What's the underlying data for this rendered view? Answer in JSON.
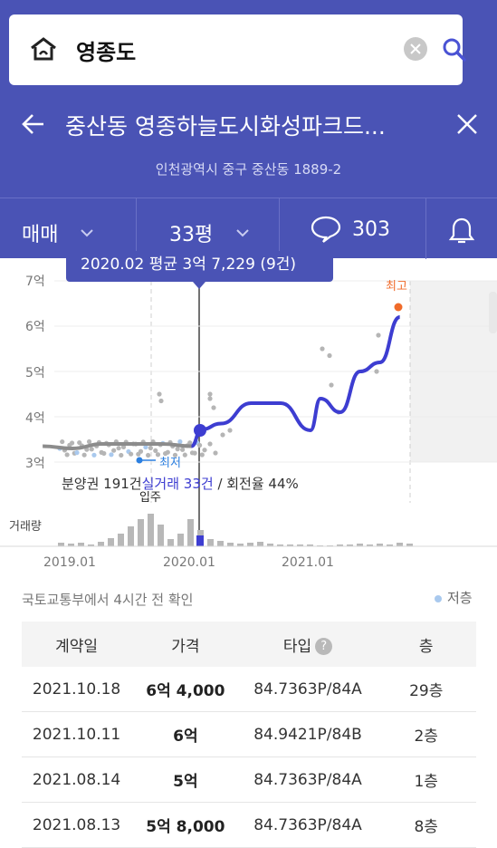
{
  "search": {
    "query": "영종도"
  },
  "header": {
    "title": "중산동 영종하늘도시화성파크드...",
    "address": "인천광역시 중구 중산동 1889-2"
  },
  "filters": {
    "deal_type": "매매",
    "size": "33평",
    "comment_count": "303"
  },
  "chart": {
    "tooltip": "2020.02 평균 3억 7,229 (9건)",
    "y_ticks": [
      "7억",
      "6억",
      "5억",
      "4억",
      "3억"
    ],
    "x_ticks": [
      "2019.01",
      "2020.01",
      "2021.01"
    ],
    "high_label": "최고",
    "low_label": "최저",
    "move_in_label": "입주",
    "volume_label": "거래량",
    "summary_prefix": "분양권 191건",
    "summary_real": "실거래 33건",
    "summary_suffix": " / 회전율 44%",
    "colors": {
      "line": "#3d3dd1",
      "high": "#f06b2a",
      "low_dot": "#2b7fe0",
      "pre_line": "#888888"
    }
  },
  "chart_data": {
    "type": "line",
    "title": "",
    "x": [
      "2018.10",
      "2019.01",
      "2019.04",
      "2019.07",
      "2019.10",
      "2020.01",
      "2020.02",
      "2020.04",
      "2020.07",
      "2020.10",
      "2021.01",
      "2021.02",
      "2021.04",
      "2021.06",
      "2021.08",
      "2021.10"
    ],
    "series": [
      {
        "values": [
          3.35,
          3.3,
          3.4,
          3.4,
          3.4,
          3.35,
          3.72,
          3.85,
          4.3,
          4.3,
          3.7,
          4.4,
          4.1,
          5.0,
          5.2,
          6.2
        ]
      }
    ],
    "ylim": [
      3,
      7
    ],
    "ylabel": "",
    "xlabel": ""
  },
  "source": "국토교통부에서 4시간 전 확인",
  "legend": {
    "low_floor": "저층"
  },
  "table": {
    "headers": [
      "계약일",
      "가격",
      "타입",
      "층"
    ],
    "rows": [
      [
        "2021.10.18",
        "6억 4,000",
        "84.7363P/84A",
        "29층"
      ],
      [
        "2021.10.11",
        "6억",
        "84.9421P/84B",
        "2층"
      ],
      [
        "2021.08.14",
        "5억",
        "84.7363P/84A",
        "1층"
      ],
      [
        "2021.08.13",
        "5억 8,000",
        "84.7363P/84A",
        "8층"
      ]
    ]
  }
}
